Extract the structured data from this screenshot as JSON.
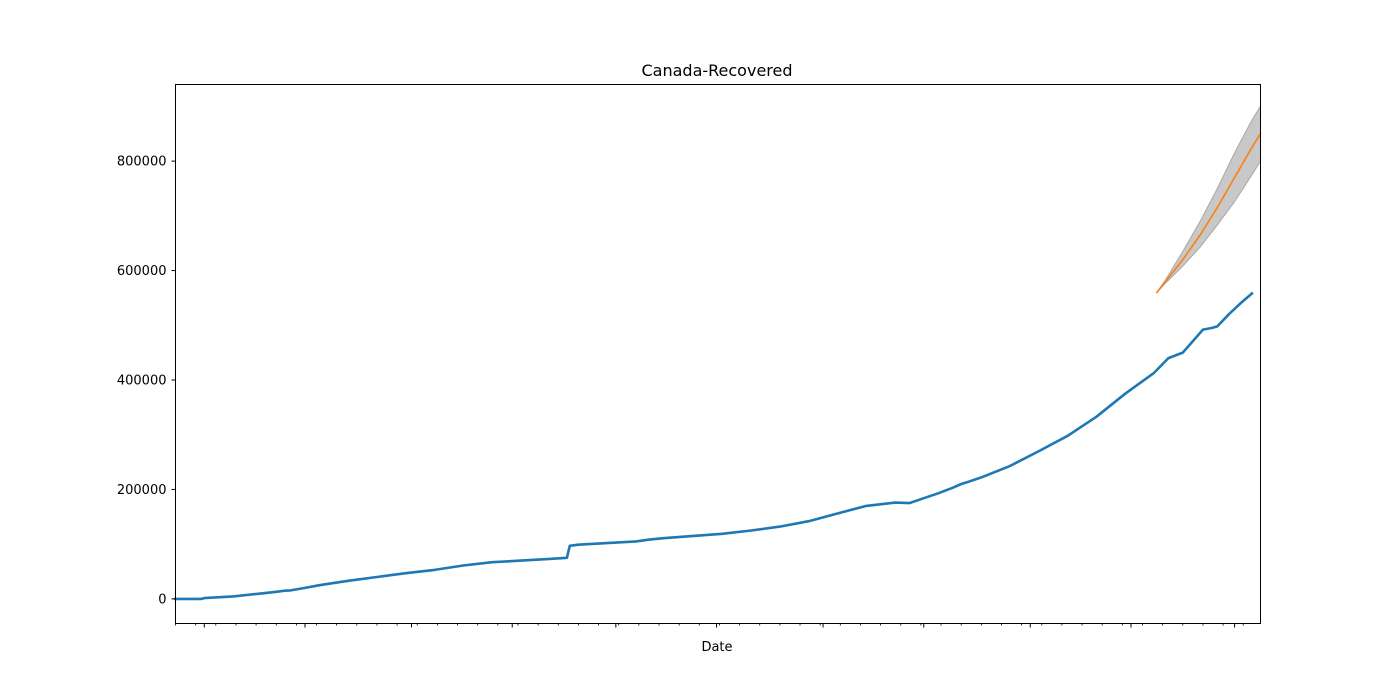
{
  "chart_data": {
    "type": "line",
    "title": "Canada-Recovered",
    "xlabel": "Date",
    "ylabel": "",
    "x_unit": "day",
    "xlim": [
      0,
      377
    ],
    "ylim": [
      -45000,
      940000
    ],
    "y_ticks": [
      0,
      200000,
      400000,
      600000,
      800000
    ],
    "y_tick_labels": [
      "0",
      "200000",
      "400000",
      "600000",
      "800000"
    ],
    "grid": false,
    "series": [
      {
        "name": "",
        "color": "#1f77b4",
        "x": [
          0,
          9,
          10,
          20,
          30,
          35,
          38,
          40,
          45,
          50,
          60,
          70,
          80,
          90,
          100,
          110,
          120,
          130,
          136,
          137,
          140,
          150,
          160,
          164,
          166,
          170,
          180,
          190,
          200,
          210,
          220,
          230,
          240,
          250,
          255,
          260,
          265,
          270,
          273,
          275,
          280,
          290,
          300,
          310,
          320,
          330,
          340,
          345,
          350,
          355,
          357,
          360,
          362,
          366,
          370,
          374
        ],
        "y": [
          0,
          0,
          1500,
          4500,
          10000,
          13000,
          15000,
          15500,
          20000,
          25000,
          33000,
          40000,
          47000,
          53000,
          61000,
          67000,
          70000,
          73000,
          75000,
          97000,
          99000,
          102000,
          105000,
          108000,
          109000,
          111000,
          115000,
          119000,
          125000,
          132000,
          142000,
          156000,
          170000,
          176000,
          175000,
          184000,
          193000,
          203000,
          210000,
          213000,
          222000,
          243000,
          270000,
          298000,
          333000,
          375000,
          413000,
          440000,
          450000,
          480000,
          492000,
          495000,
          498000,
          520000,
          540000,
          558000
        ]
      },
      {
        "name": "",
        "color": "#ff7f0e",
        "x": [
          341,
          344,
          350,
          356,
          362,
          368,
          374,
          377
        ],
        "y": [
          560000,
          580000,
          620000,
          665000,
          715000,
          770000,
          825000,
          850000
        ]
      }
    ],
    "confidence_band": {
      "color": "#c8c8c8",
      "x": [
        341,
        344,
        350,
        356,
        362,
        368,
        374,
        377
      ],
      "lower": [
        560000,
        577000,
        608000,
        643000,
        683000,
        726000,
        775000,
        800000
      ],
      "upper": [
        560000,
        583000,
        635000,
        690000,
        750000,
        815000,
        875000,
        900000
      ]
    }
  }
}
